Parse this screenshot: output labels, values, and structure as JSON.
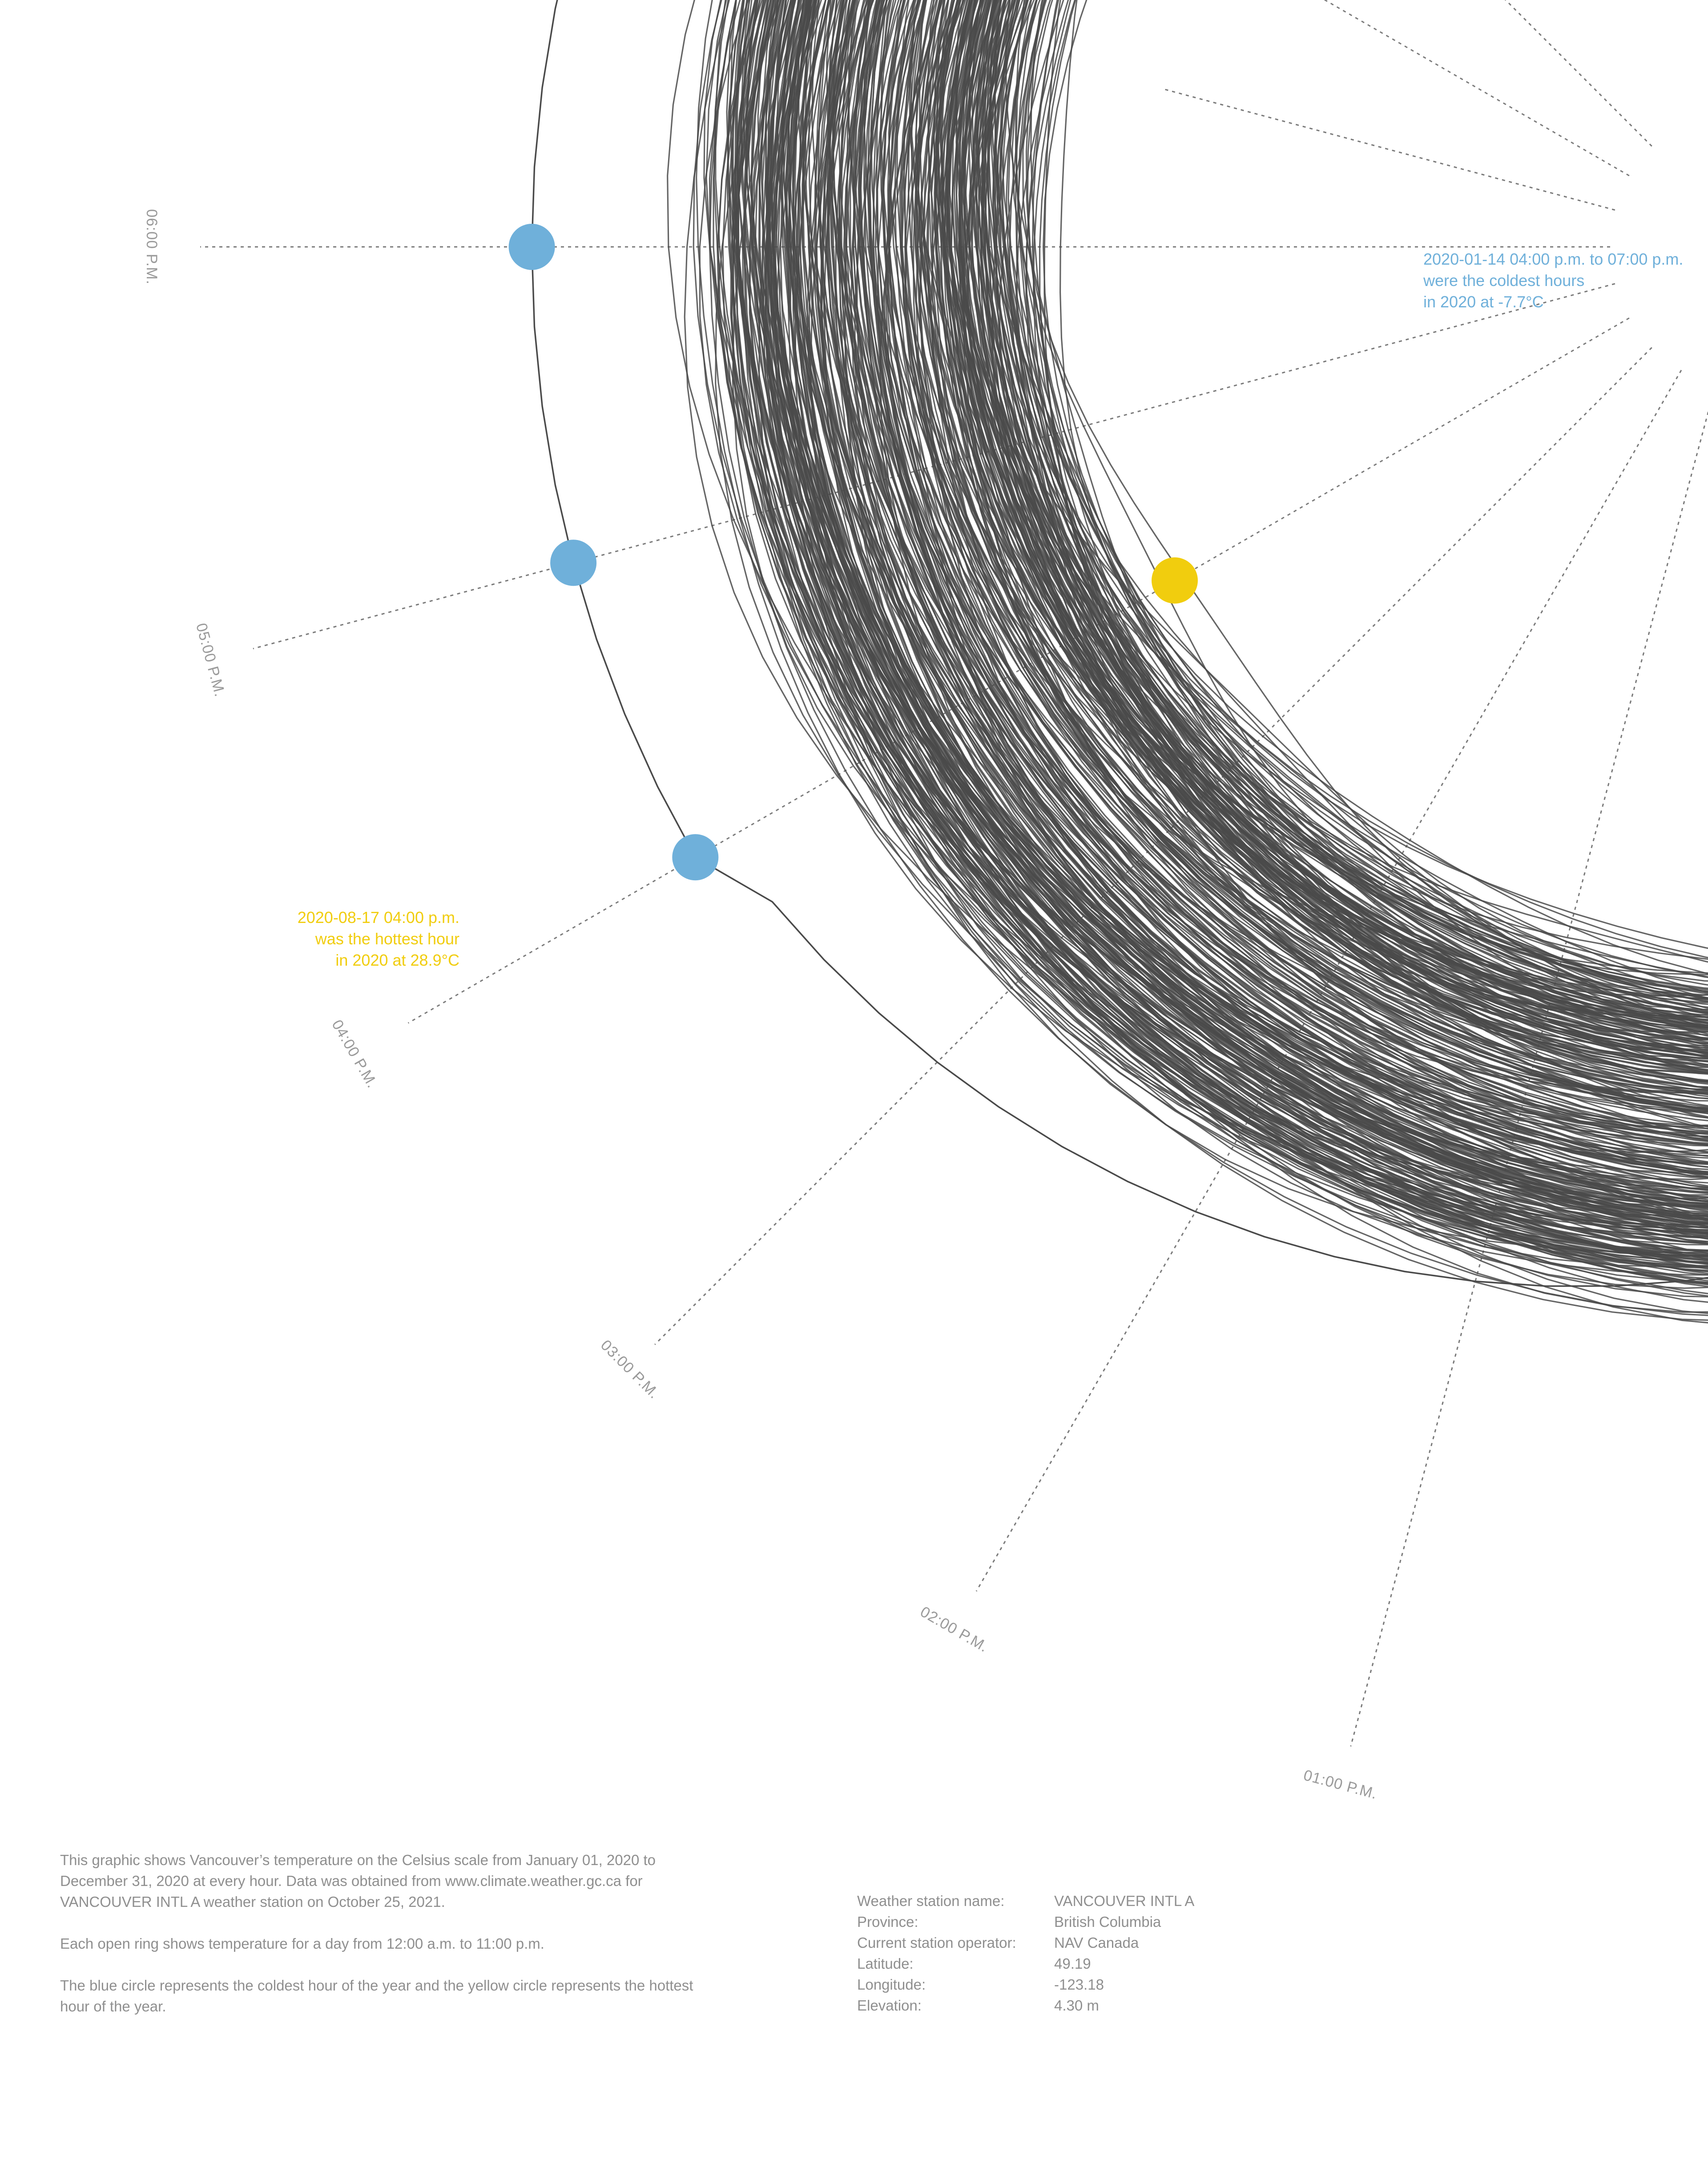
{
  "chart_data": {
    "type": "radial-line",
    "hour_labels": [
      "06:00 P.M.",
      "05:00 P.M.",
      "04:00 P.M.",
      "03:00 P.M.",
      "02:00 P.M.",
      "01:00 P.M."
    ],
    "coldest": {
      "value_c": -7.7,
      "date": "2020-01-14",
      "hours": [
        "04:00 PM",
        "05:00 PM",
        "06:00 PM",
        "07:00 PM"
      ],
      "color": "#6fb0da",
      "annotation": [
        "2020-01-14 04:00 p.m. to 07:00 p.m.",
        "were the coldest hours",
        "in 2020 at -7.7°C"
      ]
    },
    "hottest": {
      "value_c": 28.9,
      "date": "2020-08-17",
      "hour": "04:00 PM",
      "color": "#f1cd0e",
      "annotation": [
        "2020-08-17 04:00 p.m.",
        "was the hottest hour",
        "in 2020 at 28.9°C"
      ]
    },
    "line_color": "#555555"
  },
  "description": [
    "This graphic shows Vancouver’s temperature on the Celsius scale from January 01, 2020 to December 31, 2020 at every hour. Data was obtained from www.climate.weather.gc.ca for VANCOUVER INTL A weather station on October 25, 2021.",
    "Each open ring shows temperature for a day from 12:00 a.m. to 11:00 p.m.",
    "The blue circle represents the coldest hour of the year and the yellow circle represents the hottest hour of the year."
  ],
  "station": [
    {
      "key": "Weather station name:",
      "value": "VANCOUVER INTL A"
    },
    {
      "key": "Province:",
      "value": "British Columbia"
    },
    {
      "key": "Current station operator:",
      "value": "NAV Canada"
    },
    {
      "key": "Latitude:",
      "value": "49.19"
    },
    {
      "key": "Longitude:",
      "value": "-123.18"
    },
    {
      "key": "Elevation:",
      "value": "4.30 m"
    }
  ]
}
